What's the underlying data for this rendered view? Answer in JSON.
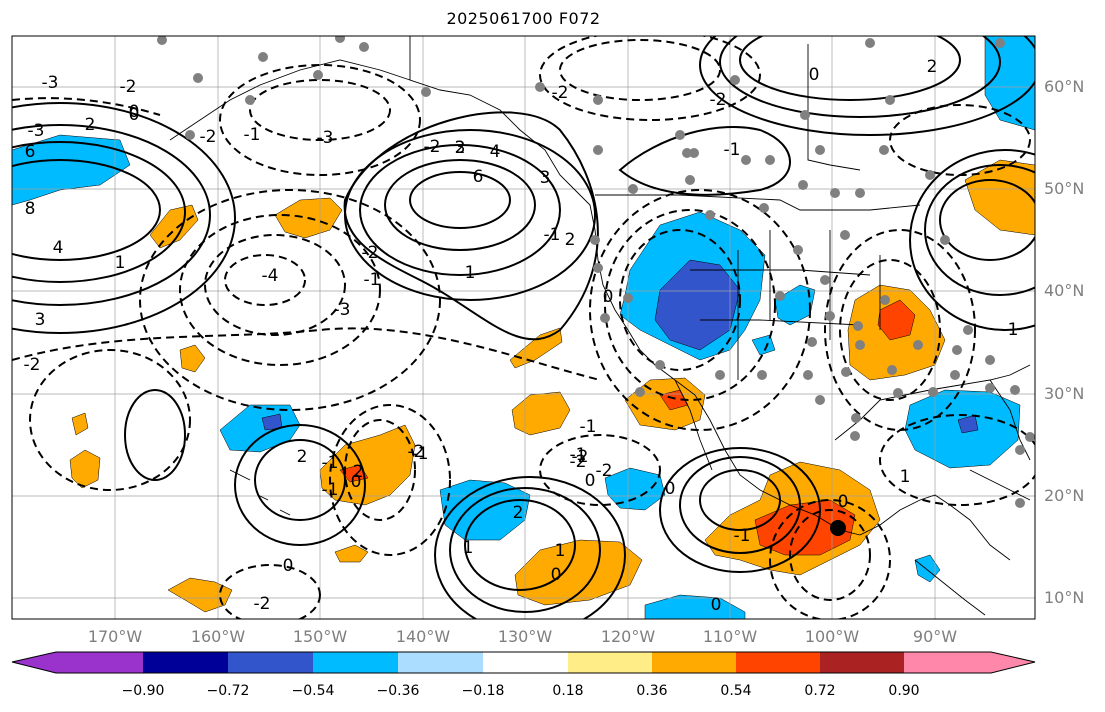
{
  "title": "2025061700 F072",
  "lat_labels": [
    "60°N",
    "50°N",
    "40°N",
    "30°N",
    "20°N",
    "10°N"
  ],
  "lon_labels": [
    "170°W",
    "160°W",
    "150°W",
    "140°W",
    "130°W",
    "120°W",
    "110°W",
    "100°W",
    "90°W"
  ],
  "colorbar": {
    "ticks": [
      "−0.90",
      "−0.72",
      "−0.54",
      "−0.36",
      "−0.18",
      "0.18",
      "0.36",
      "0.54",
      "0.72",
      "0.90"
    ],
    "colors": [
      "#9933cc",
      "#000099",
      "#3355cc",
      "#00bbff",
      "#aaddff",
      "#ffffff",
      "#ffee88",
      "#ffaa00",
      "#ff4400",
      "#aa2222",
      "#ff88aa"
    ]
  },
  "contour_labels": [
    "-3",
    "-2",
    "0",
    "-3",
    "2",
    "6",
    "8",
    "4",
    "1",
    "3",
    "-3",
    "-2",
    "-1",
    "-2",
    "-1",
    "-4",
    "-3",
    "-2",
    "2",
    "3",
    "4",
    "6",
    "2",
    "1",
    "-2",
    "0",
    "-2",
    "3",
    "-1",
    "0",
    "-2",
    "-1",
    "2",
    "-1",
    "-2",
    "2",
    "0",
    "-1",
    "0",
    "-2",
    "0",
    "-1",
    "-2",
    "1",
    "2",
    "1",
    "-1",
    "-2",
    "0",
    "0",
    "0",
    "-1",
    "0",
    "-2",
    "-1",
    "1",
    "2",
    "0",
    "-1"
  ]
}
